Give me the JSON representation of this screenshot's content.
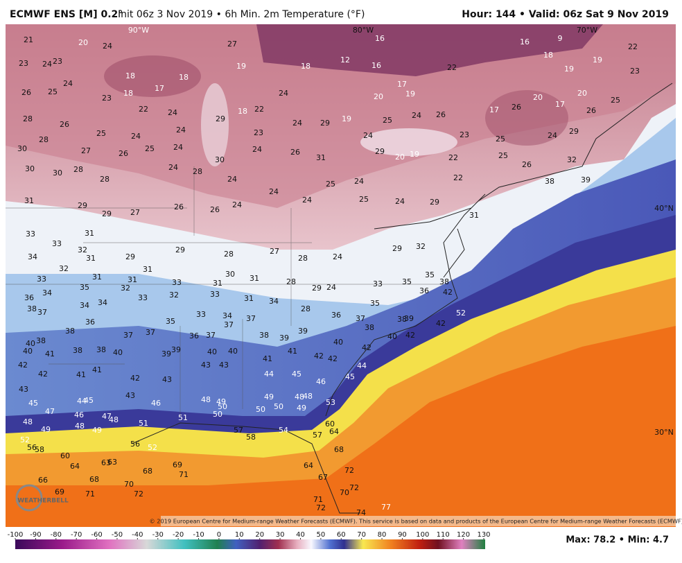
{
  "header": {
    "model": "ECMWF ENS [M] 0.2°",
    "title": "Init 06z 3 Nov 2019 • 6h Min. 2m Temperature (°F)",
    "valid": "Hour: 144 • Valid: 06z Sat 9 Nov 2019"
  },
  "map": {
    "lon_labels": [
      "90°W",
      "80°W",
      "70°W"
    ],
    "lat_labels": [
      "40°N",
      "30°N"
    ],
    "station_values": [
      21,
      20,
      24,
      27,
      16,
      9,
      16,
      22,
      23,
      24,
      23,
      18,
      18,
      17,
      18,
      19,
      18,
      12,
      16,
      22,
      18,
      19,
      19,
      23,
      26,
      25,
      24,
      23,
      22,
      24,
      18,
      22,
      24,
      17,
      19,
      20,
      17,
      26,
      20,
      17,
      20,
      26,
      25,
      28,
      26,
      25,
      24,
      24,
      29,
      23,
      24,
      29,
      19,
      25,
      24,
      26,
      23,
      25,
      24,
      29,
      30,
      28,
      27,
      26,
      25,
      24,
      30,
      24,
      26,
      31,
      24,
      29,
      20,
      19,
      22,
      25,
      26,
      32,
      30,
      30,
      28,
      28,
      24,
      28,
      24,
      24,
      25,
      24,
      24,
      29,
      22,
      31,
      29,
      29,
      27,
      26,
      26,
      24,
      24,
      25,
      31,
      39,
      38,
      33,
      33,
      31,
      32,
      31,
      29,
      31,
      29,
      28,
      27,
      28,
      24,
      29,
      32,
      34,
      32,
      33,
      31,
      31,
      33,
      31,
      30,
      31,
      28,
      29,
      24,
      33,
      35,
      35,
      38,
      36,
      34,
      35,
      32,
      34,
      34,
      33,
      32,
      33,
      31,
      34,
      28,
      36,
      37,
      35,
      36,
      42,
      38,
      37,
      36,
      38,
      37,
      37,
      35,
      33,
      34,
      37,
      37,
      36,
      37,
      38,
      39,
      39,
      40,
      38,
      38,
      39,
      42,
      52,
      40,
      38,
      40,
      41,
      38,
      38,
      40,
      39,
      39,
      40,
      40,
      43,
      43,
      41,
      41,
      42,
      42,
      42,
      40,
      42,
      42,
      42,
      41,
      41,
      42,
      43,
      44,
      45,
      46,
      45,
      44,
      43,
      43,
      45,
      47,
      44,
      45,
      46,
      48,
      49,
      50,
      49,
      48,
      48,
      50,
      50,
      49,
      53,
      48,
      49,
      46,
      47,
      48,
      48,
      49,
      51,
      51,
      50,
      57,
      58,
      54,
      57,
      60,
      64,
      68,
      52,
      56,
      58,
      56,
      52,
      60,
      64,
      63,
      63,
      69,
      71,
      68,
      66,
      68,
      70,
      64,
      67,
      72,
      72,
      69,
      71,
      72,
      70,
      71,
      72,
      74,
      77
    ],
    "copyright": "© 2019 European Centre for Medium-range Weather Forecasts (ECMWF). This service is based on data and products of the European Centre for Medium-range Weather Forecasts (ECMWF).",
    "logo": "WEATHERBELL"
  },
  "colorbar": {
    "ticks": [
      -100,
      -90,
      -80,
      -70,
      -60,
      -50,
      -40,
      -30,
      -20,
      -10,
      0,
      10,
      20,
      30,
      40,
      50,
      60,
      70,
      80,
      90,
      100,
      110,
      120,
      130
    ]
  },
  "stats": {
    "summary": "Max: 78.2 • Min: 4.7"
  }
}
